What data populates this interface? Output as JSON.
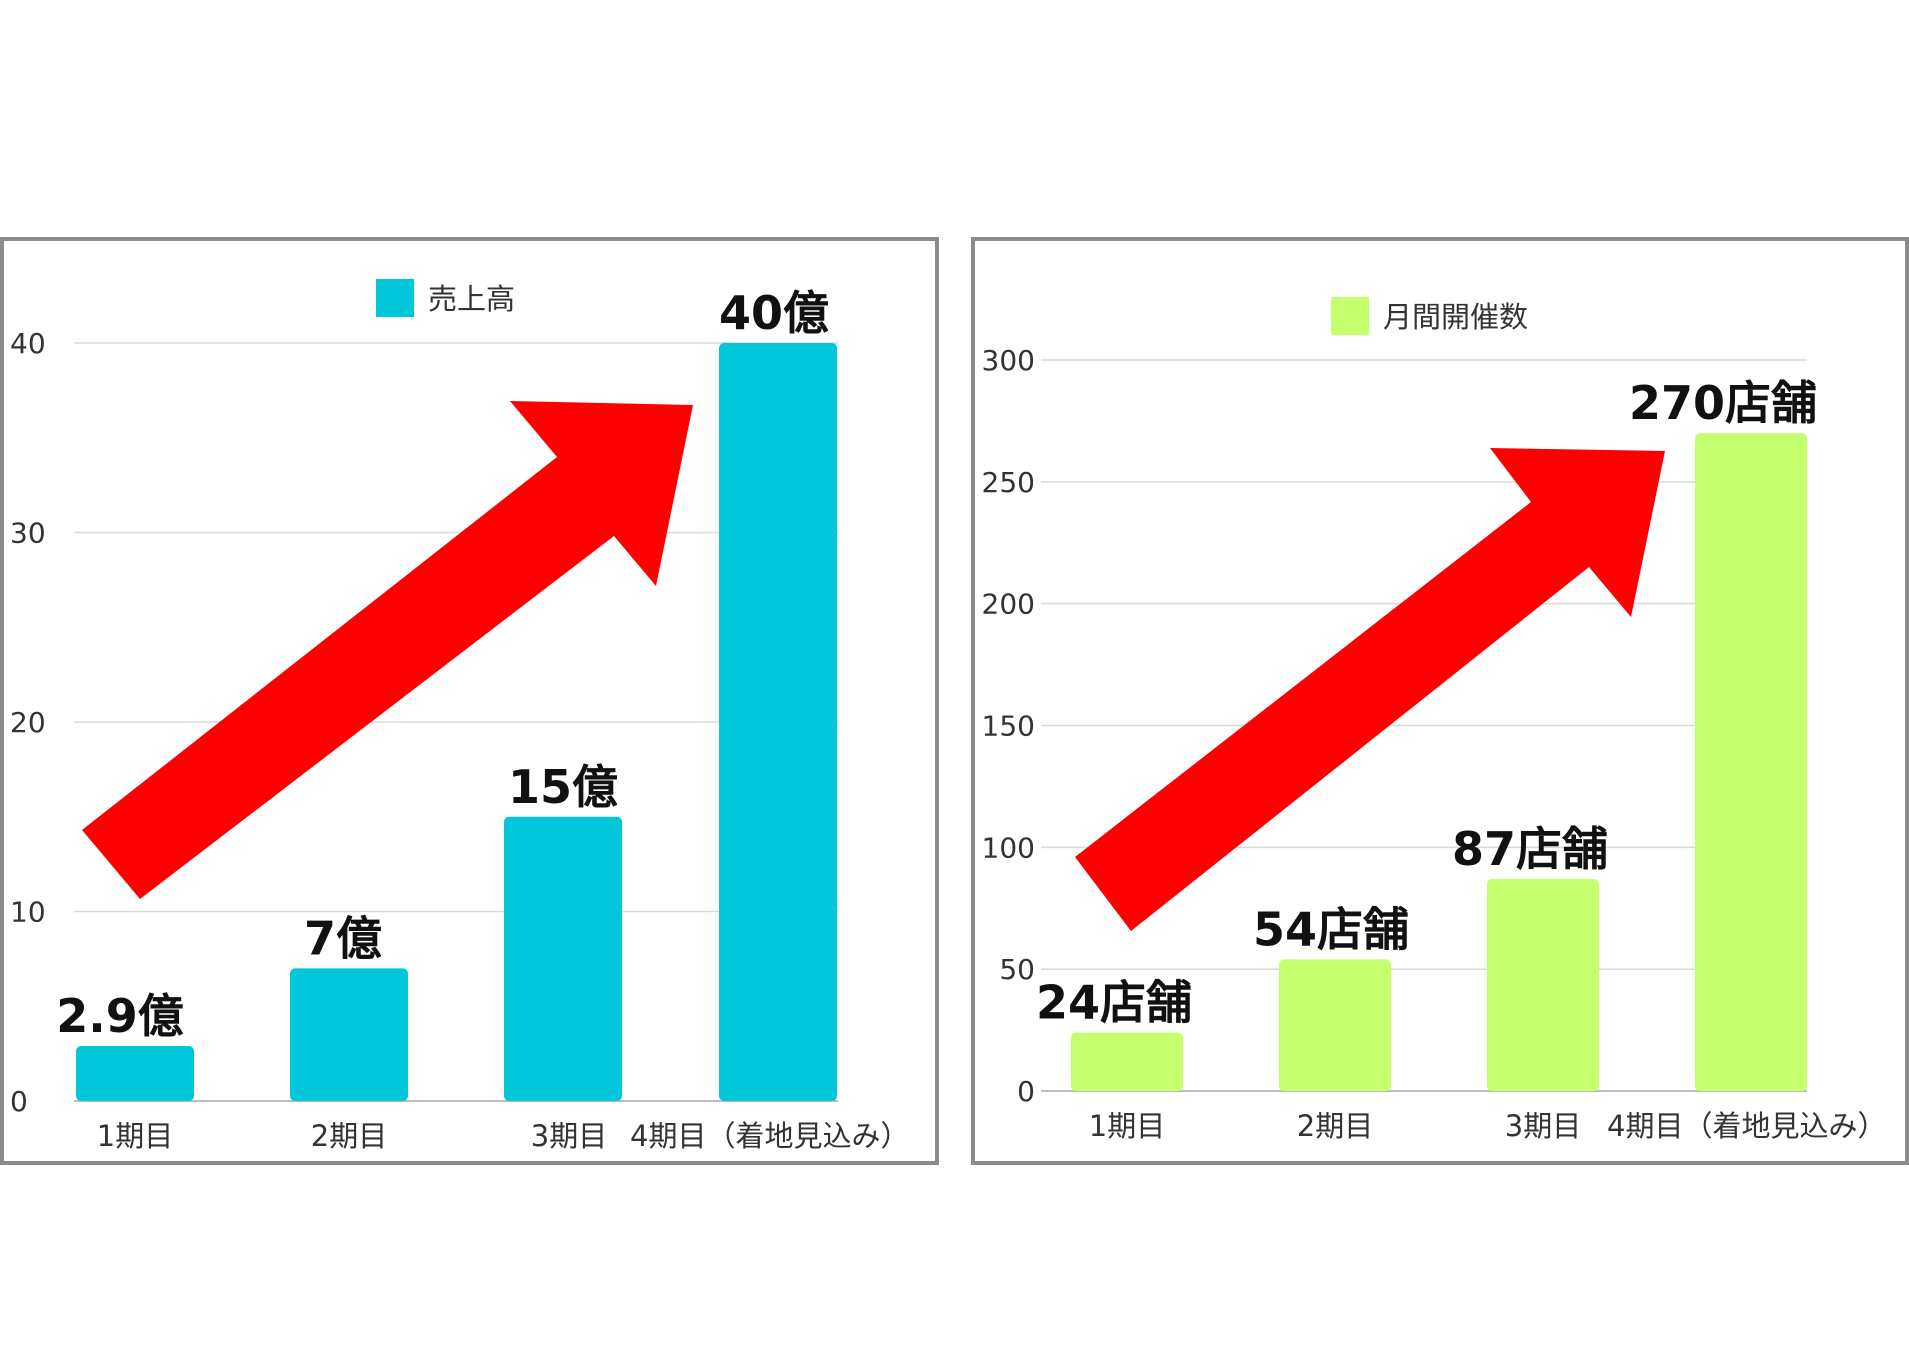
{
  "colors": {
    "panel_border": "#8c8c8c",
    "arrow": "#ff0000",
    "left_bar": "#00c8da",
    "right_bar": "#c4ff6e"
  },
  "chart_data": [
    {
      "type": "bar",
      "title": "",
      "legend": [
        "売上高"
      ],
      "legend_position": "top-center",
      "grid": true,
      "categories": [
        "1期目",
        "2期目",
        "3期目",
        "4期目（着地見込み）"
      ],
      "series": [
        {
          "name": "売上高",
          "values": [
            2.9,
            7,
            15,
            40
          ]
        }
      ],
      "data_labels": [
        "2.9億",
        "7億",
        "15億",
        "40億"
      ],
      "y_ticks": [
        "0",
        "10",
        "20",
        "30",
        "40"
      ],
      "ylim": [
        0,
        40
      ],
      "annotation": "red upward arrow"
    },
    {
      "type": "bar",
      "title": "",
      "legend": [
        "月間開催数"
      ],
      "legend_position": "top-center",
      "grid": true,
      "categories": [
        "1期目",
        "2期目",
        "3期目",
        "4期目（着地見込み）"
      ],
      "series": [
        {
          "name": "月間開催数",
          "values": [
            24,
            54,
            87,
            270
          ]
        }
      ],
      "data_labels": [
        "24店舗",
        "54店舗",
        "87店舗",
        "270店舗"
      ],
      "y_ticks": [
        "0",
        "50",
        "100",
        "150",
        "200",
        "250",
        "300"
      ],
      "ylim": [
        0,
        300
      ],
      "annotation": "red upward arrow"
    }
  ]
}
